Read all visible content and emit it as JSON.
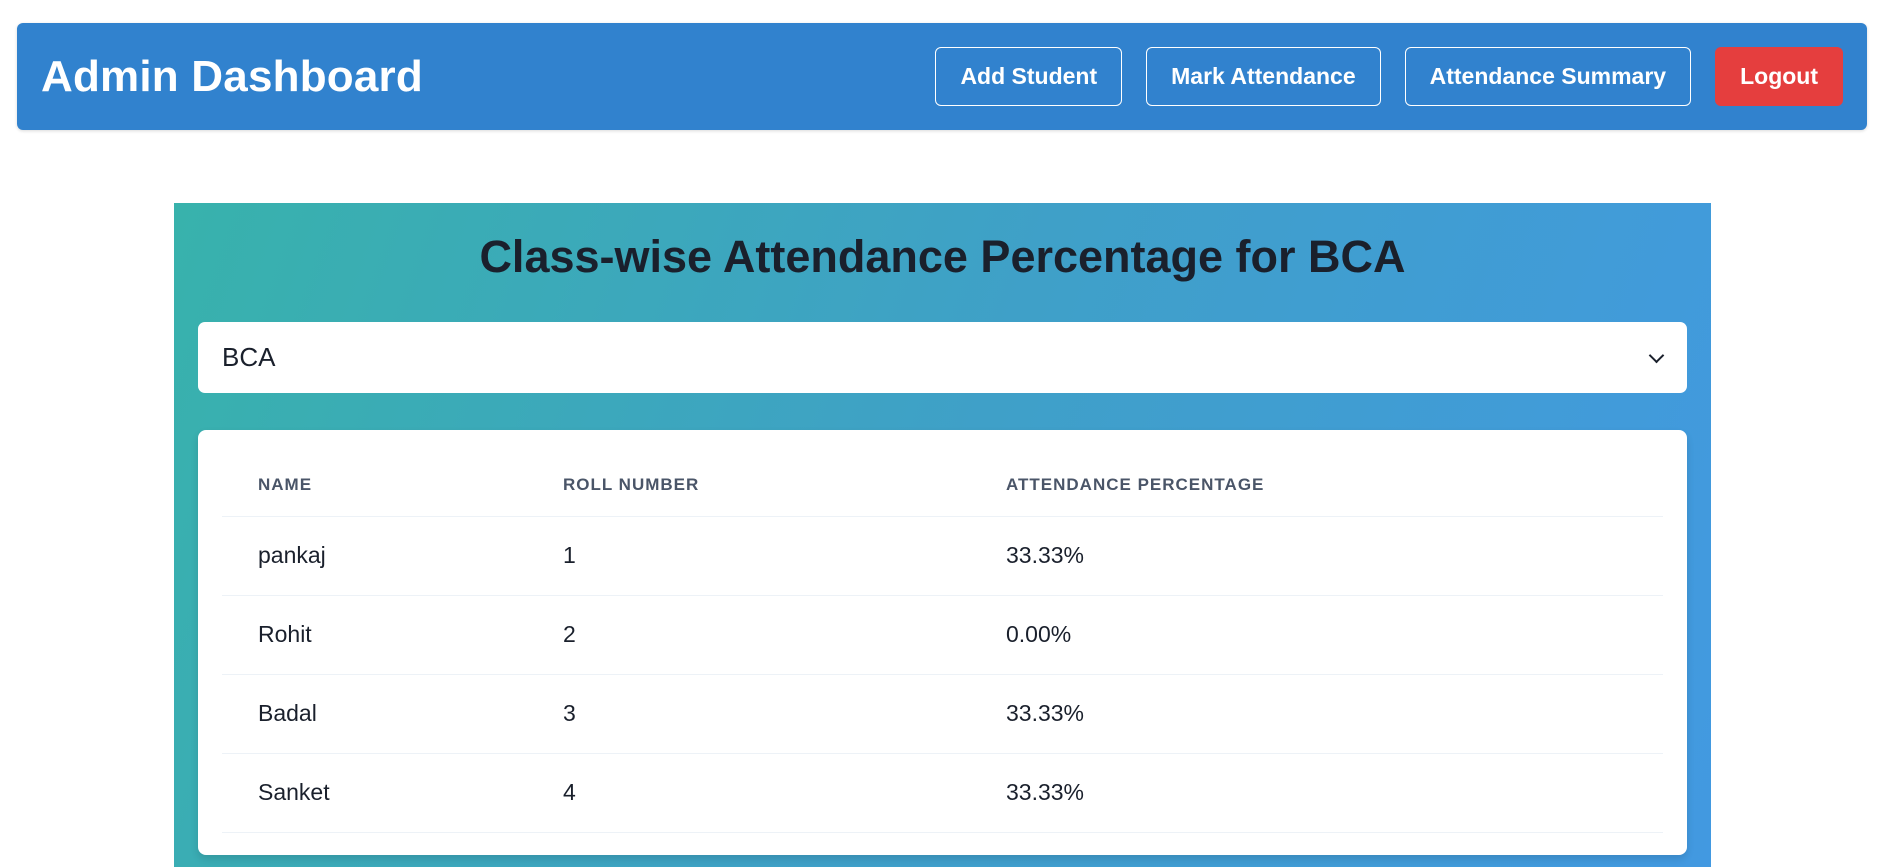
{
  "header": {
    "title": "Admin Dashboard",
    "buttons": {
      "add_student": "Add Student",
      "mark_attendance": "Mark Attendance",
      "attendance_summary": "Attendance Summary",
      "logout": "Logout"
    }
  },
  "main": {
    "title": "Class-wise Attendance Percentage for BCA",
    "class_select": {
      "selected": "BCA"
    },
    "table": {
      "columns": [
        "NAME",
        "ROLL NUMBER",
        "ATTENDANCE PERCENTAGE"
      ],
      "rows": [
        {
          "name": "pankaj",
          "roll": "1",
          "percentage": "33.33%"
        },
        {
          "name": "Rohit",
          "roll": "2",
          "percentage": "0.00%"
        },
        {
          "name": "Badal",
          "roll": "3",
          "percentage": "33.33%"
        },
        {
          "name": "Sanket",
          "roll": "4",
          "percentage": "33.33%"
        }
      ]
    }
  },
  "colors": {
    "navbar": "#3182ce",
    "logout": "#e53e3e",
    "gradient_start": "#38b2ac",
    "gradient_end": "#4299e1",
    "text_dark": "#1a202c"
  }
}
